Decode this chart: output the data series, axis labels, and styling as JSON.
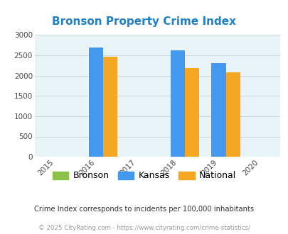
{
  "title": "Bronson Property Crime Index",
  "title_color": "#2080c8",
  "years": [
    2016,
    2018,
    2019
  ],
  "bronson": [
    0,
    0,
    0
  ],
  "kansas": [
    2700,
    2620,
    2310
  ],
  "national": [
    2460,
    2180,
    2090
  ],
  "bronson_color": "#8bc34a",
  "kansas_color": "#4499ee",
  "national_color": "#f5a623",
  "xlim": [
    2014.5,
    2020.5
  ],
  "xticks": [
    2015,
    2016,
    2017,
    2018,
    2019,
    2020
  ],
  "ylim": [
    0,
    3000
  ],
  "yticks": [
    0,
    500,
    1000,
    1500,
    2000,
    2500,
    3000
  ],
  "bar_width": 0.35,
  "bg_color": "#e8f4f8",
  "fig_bg": "#ffffff",
  "grid_color": "#c8d8dc",
  "legend_labels": [
    "Bronson",
    "Kansas",
    "National"
  ],
  "footer1": "Crime Index corresponds to incidents per 100,000 inhabitants",
  "footer2": "© 2025 CityRating.com - https://www.cityrating.com/crime-statistics/",
  "footer1_color": "#333333",
  "footer2_color": "#999999"
}
